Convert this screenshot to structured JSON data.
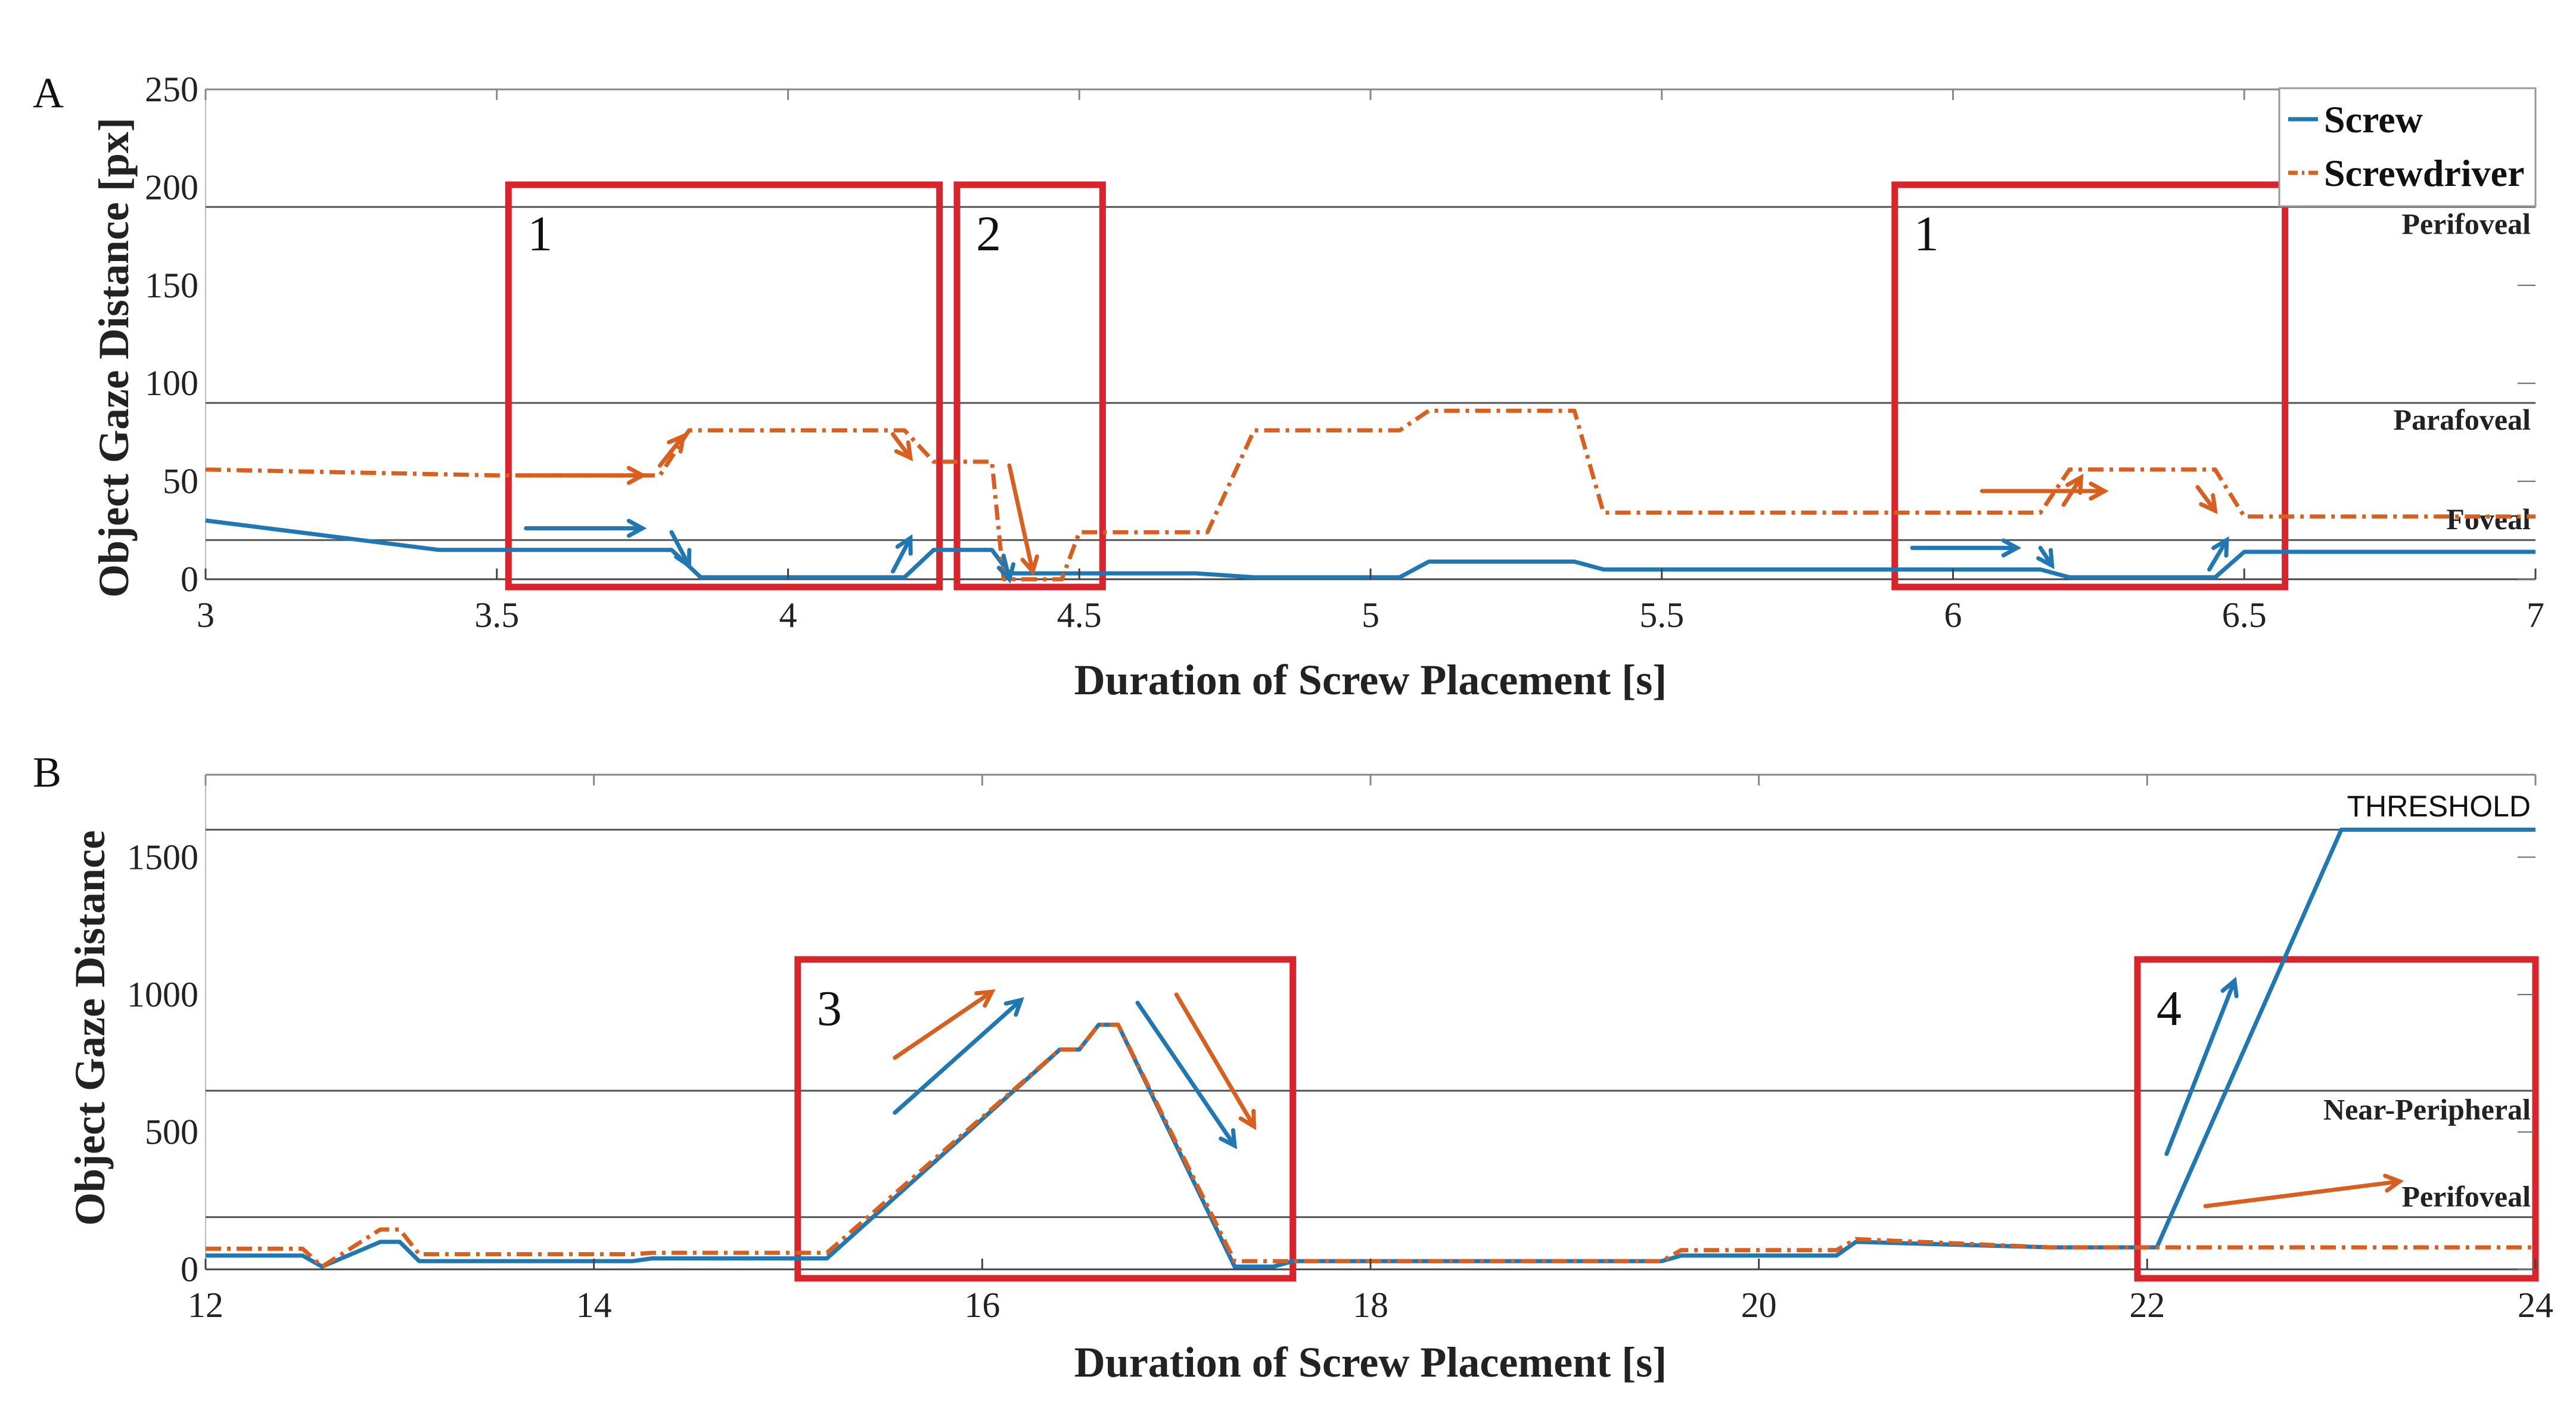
{
  "chart_data": [
    {
      "panel_label": "A",
      "type": "line",
      "xlabel": "Duration of Screw Placement [s]",
      "ylabel": "Object Gaze Distance [px]",
      "xlim": [
        3,
        7
      ],
      "ylim": [
        0,
        250
      ],
      "xticks": [
        "3",
        "3.5",
        "4",
        "4.5",
        "5",
        "5.5",
        "6",
        "6.5",
        "7"
      ],
      "yticks": [
        "0",
        "50",
        "100",
        "150",
        "200",
        "250"
      ],
      "legend": {
        "position": "top-right",
        "entries": [
          "Screw",
          "Screwdriver"
        ]
      },
      "thresholds": [
        {
          "label": "Foveal",
          "value": 20
        },
        {
          "label": "Parafoveal",
          "value": 90
        },
        {
          "label": "Perifoveal",
          "value": 190
        }
      ],
      "series": [
        {
          "name": "Screw",
          "color": "#1f77b4",
          "style": "solid",
          "x": [
            3,
            3.4,
            3.8,
            3.85,
            4.2,
            4.25,
            4.35,
            4.38,
            4.7,
            4.8,
            5.05,
            5.1,
            5.35,
            5.4,
            6.15,
            6.2,
            6.45,
            6.5,
            7
          ],
          "y": [
            30,
            15,
            15,
            1,
            1,
            15,
            15,
            3,
            3,
            1,
            1,
            9,
            9,
            5,
            5,
            1,
            1,
            14,
            14
          ]
        },
        {
          "name": "Screwdriver",
          "color": "#d95f1e",
          "style": "dashdot",
          "x": [
            3,
            3.5,
            3.78,
            3.83,
            4.2,
            4.25,
            4.35,
            4.37,
            4.47,
            4.5,
            4.72,
            4.8,
            5.05,
            5.1,
            5.35,
            5.4,
            6.15,
            6.2,
            6.45,
            6.5,
            7
          ],
          "y": [
            56,
            53,
            53,
            76,
            76,
            60,
            60,
            0,
            0,
            24,
            24,
            76,
            76,
            86,
            86,
            34,
            34,
            56,
            56,
            32,
            32
          ]
        }
      ],
      "annotations": [
        {
          "label": "1",
          "x_range": [
            3.52,
            4.26
          ]
        },
        {
          "label": "2",
          "x_range": [
            4.29,
            4.54
          ]
        },
        {
          "label": "1",
          "x_range": [
            5.9,
            6.57
          ]
        }
      ]
    },
    {
      "panel_label": "B",
      "type": "line",
      "xlabel": "Duration of Screw Placement [s]",
      "ylabel": "Object Gaze Distance",
      "xlim": [
        12,
        24
      ],
      "ylim": [
        0,
        1800
      ],
      "xticks": [
        "12",
        "14",
        "16",
        "18",
        "20",
        "22",
        "24"
      ],
      "yticks": [
        "0",
        "500",
        "1000",
        "1500"
      ],
      "thresholds": [
        {
          "label": "Perifoveal",
          "value": 190
        },
        {
          "label": "Near-Peripheral",
          "value": 650
        },
        {
          "label": "THRESHOLD",
          "value": 1600
        }
      ],
      "series": [
        {
          "name": "Screw",
          "color": "#1f77b4",
          "style": "solid",
          "x": [
            12,
            12.5,
            12.6,
            12.9,
            13.0,
            13.1,
            14.2,
            14.3,
            15.2,
            16.4,
            16.5,
            16.6,
            16.7,
            17.3,
            17.5,
            17.6,
            19.5,
            19.6,
            20.4,
            20.5,
            21.5,
            22.0,
            22.05,
            23.0,
            24.0
          ],
          "y": [
            50,
            50,
            10,
            100,
            100,
            30,
            30,
            40,
            40,
            800,
            800,
            890,
            890,
            10,
            10,
            30,
            30,
            50,
            50,
            100,
            80,
            80,
            80,
            1600,
            1600
          ]
        },
        {
          "name": "Screwdriver",
          "color": "#d95f1e",
          "style": "dashdot",
          "x": [
            12,
            12.5,
            12.6,
            12.9,
            13.0,
            13.1,
            14.2,
            14.3,
            15.2,
            16.4,
            16.5,
            16.6,
            16.7,
            17.3,
            17.5,
            17.6,
            19.5,
            19.6,
            20.4,
            20.5,
            21.5,
            22.0,
            24.0
          ],
          "y": [
            75,
            75,
            10,
            145,
            145,
            55,
            55,
            60,
            60,
            800,
            800,
            890,
            890,
            30,
            30,
            30,
            30,
            70,
            70,
            110,
            80,
            80,
            80
          ]
        }
      ],
      "annotations": [
        {
          "label": "3",
          "x_range": [
            15.05,
            17.6
          ]
        },
        {
          "label": "4",
          "x_range": [
            21.95,
            24.0
          ]
        }
      ]
    }
  ]
}
